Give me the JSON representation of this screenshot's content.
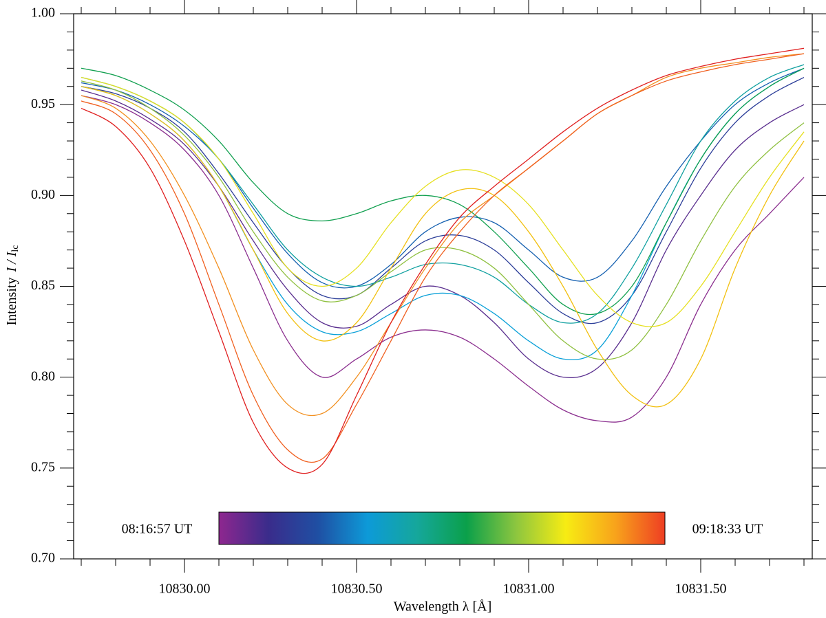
{
  "chart_data": {
    "type": "line",
    "xlabel": "Wavelength  λ  [Å]",
    "ylabel": {
      "text": "Intensity",
      "symbol": "I / I",
      "subscript": "lc"
    },
    "xlim": [
      10829.678,
      10831.824
    ],
    "ylim": [
      0.7,
      1.0
    ],
    "xticks": [
      {
        "value": 10830.0,
        "label": "10830.00"
      },
      {
        "value": 10830.5,
        "label": "10830.50"
      },
      {
        "value": 10831.0,
        "label": "10831.00"
      },
      {
        "value": 10831.5,
        "label": "10831.50"
      }
    ],
    "xminorticks": [
      10829.7,
      10829.8,
      10829.9,
      10830.1,
      10830.2,
      10830.3,
      10830.4,
      10830.6,
      10830.7,
      10830.8,
      10830.9,
      10831.1,
      10831.2,
      10831.3,
      10831.4,
      10831.6,
      10831.7,
      10831.8
    ],
    "yticks": [
      {
        "value": 0.7,
        "label": "0.70"
      },
      {
        "value": 0.75,
        "label": "0.75"
      },
      {
        "value": 0.8,
        "label": "0.80"
      },
      {
        "value": 0.85,
        "label": "0.85"
      },
      {
        "value": 0.9,
        "label": "0.90"
      },
      {
        "value": 0.95,
        "label": "0.95"
      },
      {
        "value": 1.0,
        "label": "1.00"
      }
    ],
    "yminorticks": [
      0.71,
      0.72,
      0.73,
      0.74,
      0.76,
      0.77,
      0.78,
      0.79,
      0.81,
      0.82,
      0.83,
      0.84,
      0.86,
      0.87,
      0.88,
      0.89,
      0.91,
      0.92,
      0.93,
      0.94,
      0.96,
      0.97,
      0.98,
      0.99
    ],
    "x": [
      10829.7,
      10829.8,
      10829.9,
      10830.0,
      10830.1,
      10830.2,
      10830.3,
      10830.4,
      10830.5,
      10830.6,
      10830.7,
      10830.8,
      10830.9,
      10831.0,
      10831.1,
      10831.2,
      10831.3,
      10831.4,
      10831.5,
      10831.6,
      10831.7,
      10831.8
    ],
    "series": [
      {
        "color": "#8b2f8f",
        "values": [
          0.955,
          0.95,
          0.94,
          0.925,
          0.9,
          0.86,
          0.82,
          0.8,
          0.81,
          0.822,
          0.826,
          0.822,
          0.81,
          0.795,
          0.782,
          0.776,
          0.778,
          0.8,
          0.84,
          0.87,
          0.89,
          0.91
        ]
      },
      {
        "color": "#5a2f8f",
        "values": [
          0.958,
          0.952,
          0.942,
          0.928,
          0.905,
          0.875,
          0.848,
          0.83,
          0.828,
          0.84,
          0.85,
          0.845,
          0.83,
          0.81,
          0.8,
          0.805,
          0.83,
          0.87,
          0.9,
          0.925,
          0.94,
          0.95
        ]
      },
      {
        "color": "#2c3e99",
        "values": [
          0.96,
          0.956,
          0.948,
          0.935,
          0.912,
          0.885,
          0.86,
          0.845,
          0.845,
          0.86,
          0.875,
          0.878,
          0.87,
          0.852,
          0.835,
          0.83,
          0.845,
          0.88,
          0.915,
          0.94,
          0.955,
          0.965
        ]
      },
      {
        "color": "#1560b0",
        "values": [
          0.962,
          0.958,
          0.95,
          0.938,
          0.92,
          0.893,
          0.868,
          0.852,
          0.85,
          0.862,
          0.88,
          0.888,
          0.885,
          0.87,
          0.855,
          0.855,
          0.875,
          0.905,
          0.93,
          0.95,
          0.962,
          0.97
        ]
      },
      {
        "color": "#0aa0d8",
        "values": [
          0.96,
          0.955,
          0.945,
          0.93,
          0.905,
          0.87,
          0.84,
          0.825,
          0.825,
          0.835,
          0.845,
          0.845,
          0.835,
          0.82,
          0.81,
          0.815,
          0.845,
          0.885,
          0.92,
          0.945,
          0.96,
          0.97
        ]
      },
      {
        "color": "#10a0a0",
        "values": [
          0.965,
          0.96,
          0.952,
          0.94,
          0.92,
          0.895,
          0.87,
          0.855,
          0.85,
          0.855,
          0.862,
          0.862,
          0.855,
          0.84,
          0.83,
          0.835,
          0.86,
          0.895,
          0.93,
          0.952,
          0.965,
          0.972
        ]
      },
      {
        "color": "#12a050",
        "values": [
          0.97,
          0.966,
          0.958,
          0.947,
          0.93,
          0.907,
          0.89,
          0.886,
          0.89,
          0.897,
          0.9,
          0.895,
          0.88,
          0.86,
          0.84,
          0.835,
          0.85,
          0.885,
          0.92,
          0.945,
          0.96,
          0.97
        ]
      },
      {
        "color": "#8fc040",
        "values": [
          0.963,
          0.958,
          0.948,
          0.933,
          0.91,
          0.88,
          0.855,
          0.842,
          0.845,
          0.858,
          0.87,
          0.87,
          0.86,
          0.84,
          0.82,
          0.81,
          0.815,
          0.84,
          0.875,
          0.905,
          0.925,
          0.94
        ]
      },
      {
        "color": "#e6e020",
        "values": [
          0.965,
          0.96,
          0.952,
          0.94,
          0.92,
          0.89,
          0.86,
          0.85,
          0.86,
          0.885,
          0.905,
          0.914,
          0.91,
          0.895,
          0.87,
          0.845,
          0.83,
          0.83,
          0.85,
          0.88,
          0.91,
          0.935
        ]
      },
      {
        "color": "#f2c010",
        "values": [
          0.96,
          0.955,
          0.945,
          0.93,
          0.905,
          0.87,
          0.835,
          0.82,
          0.83,
          0.86,
          0.89,
          0.903,
          0.9,
          0.88,
          0.85,
          0.815,
          0.79,
          0.785,
          0.81,
          0.86,
          0.9,
          0.93
        ]
      },
      {
        "color": "#f29020",
        "values": [
          0.955,
          0.948,
          0.93,
          0.9,
          0.86,
          0.815,
          0.785,
          0.78,
          0.8,
          0.83,
          0.86,
          0.885,
          0.9,
          0.915,
          0.93,
          0.945,
          0.955,
          0.965,
          0.97,
          0.973,
          0.976,
          0.978
        ]
      },
      {
        "color": "#f06020",
        "values": [
          0.952,
          0.945,
          0.925,
          0.89,
          0.84,
          0.79,
          0.76,
          0.755,
          0.785,
          0.82,
          0.855,
          0.88,
          0.9,
          0.915,
          0.93,
          0.945,
          0.955,
          0.963,
          0.968,
          0.972,
          0.975,
          0.978
        ]
      },
      {
        "color": "#e02020",
        "values": [
          0.948,
          0.938,
          0.915,
          0.875,
          0.825,
          0.775,
          0.75,
          0.752,
          0.79,
          0.83,
          0.862,
          0.888,
          0.905,
          0.92,
          0.935,
          0.948,
          0.958,
          0.966,
          0.971,
          0.975,
          0.978,
          0.981
        ]
      }
    ],
    "colorbar": {
      "start_label": "08:16:57 UT",
      "end_label": "09:18:33 UT",
      "colors": [
        "#8e278f",
        "#3a2c8b",
        "#1f4fa3",
        "#0d9ad8",
        "#15a79b",
        "#0ba04a",
        "#8dc63f",
        "#f7ec13",
        "#f8a31b",
        "#ee3e23"
      ]
    }
  }
}
